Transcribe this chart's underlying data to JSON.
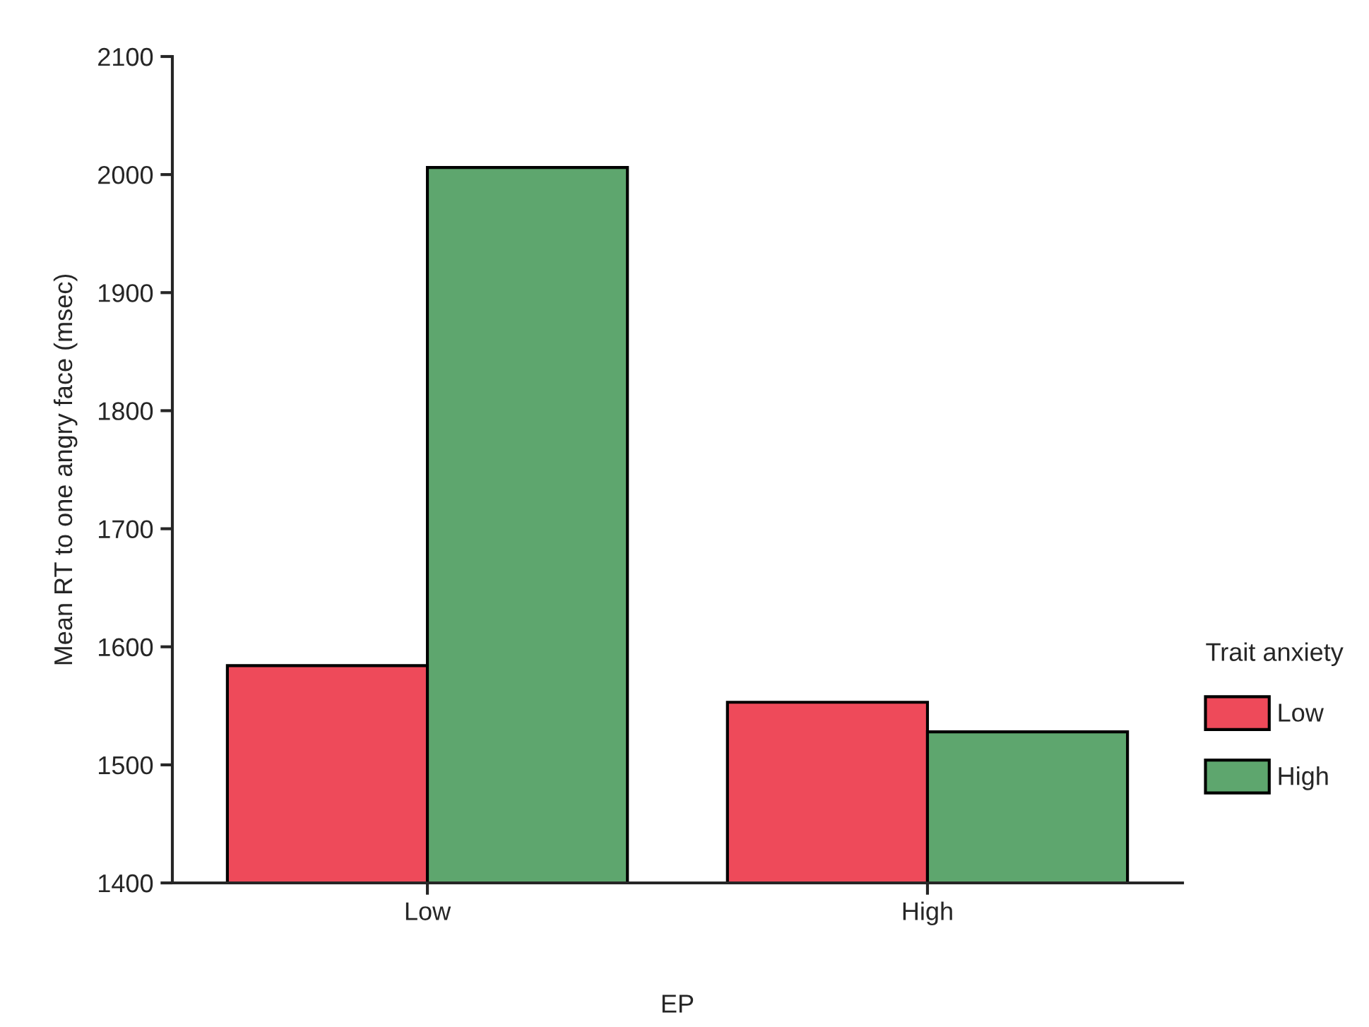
{
  "chart_data": {
    "type": "bar",
    "xlabel": "EP",
    "ylabel": "Mean RT to one angry face (msec)",
    "legend_title": "Trait anxiety",
    "categories": [
      "Low",
      "High"
    ],
    "series": [
      {
        "name": "Low",
        "color": "#ee4a5a",
        "values": [
          1584,
          1553
        ]
      },
      {
        "name": "High",
        "color": "#5ea66e",
        "values": [
          2006,
          1528
        ]
      }
    ],
    "ylim": [
      1400,
      2100
    ],
    "yticks": [
      1400,
      1500,
      1600,
      1700,
      1800,
      1900,
      2000,
      2100
    ],
    "grid": false,
    "legend": "right"
  }
}
